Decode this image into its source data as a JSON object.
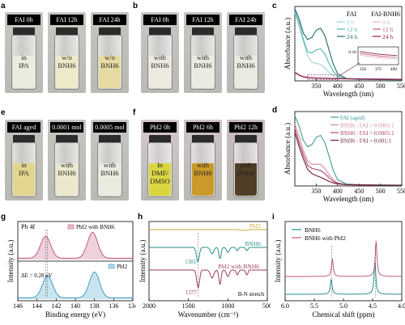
{
  "panels": {
    "a": {
      "label": "a",
      "vials": [
        {
          "tag": "FAI 0h",
          "text": "in\nIPA",
          "liquid": "#ecebdf"
        },
        {
          "tag": "FAI 12h",
          "text": "w/o\nBNH6",
          "liquid": "#eee9c9"
        },
        {
          "tag": "FAI 24h",
          "text": "w/o\nBNH6",
          "liquid": "#e6dba2"
        }
      ]
    },
    "b": {
      "label": "b",
      "vials": [
        {
          "tag": "FAI 0h",
          "text": "with\nBNH6",
          "liquid": "#eceae1"
        },
        {
          "tag": "FAI 12h",
          "text": "with\nBNH6",
          "liquid": "#ecebe2"
        },
        {
          "tag": "FAI 24h",
          "text": "with\nBNH6",
          "liquid": "#ebeae0"
        }
      ]
    },
    "e": {
      "label": "e",
      "vials": [
        {
          "tag": "FAI aged",
          "text": "in\nIPA",
          "liquid": "#e2d68f"
        },
        {
          "tag": "0.0001 mol",
          "text": "with\nBNH6",
          "liquid": "#ece8cd"
        },
        {
          "tag": "0.0005 mol",
          "text": "with\nBNH6",
          "liquid": "#ecebe0"
        }
      ]
    },
    "f": {
      "label": "f",
      "vials": [
        {
          "tag": "PbI2 0h",
          "text": "In DMF/\nDMSO",
          "liquid": "#d9d640"
        },
        {
          "tag": "PbI2 6h",
          "text": "with\nBNH6",
          "liquid": "#c99a2a"
        },
        {
          "tag": "PbI2 12h",
          "text": "with\nBNH6",
          "liquid": "#4f3f27"
        }
      ]
    },
    "c": {
      "label": "c"
    },
    "d": {
      "label": "d"
    },
    "g": {
      "label": "g"
    },
    "h": {
      "label": "h"
    },
    "i": {
      "label": "i"
    }
  },
  "chart_data": [
    {
      "id": "c",
      "type": "line",
      "xlabel": "Wavelength (nm)",
      "ylabel": "Absorbance (a.u.)",
      "xlim": [
        300,
        550
      ],
      "xticks": [
        350,
        400,
        450,
        500,
        550
      ],
      "legend_headers": [
        "FAI",
        "FAI-BNH6"
      ],
      "legend_rows": [
        "0 h",
        "12 h",
        "24 h"
      ],
      "series": [
        {
          "name": "FAI 0 h",
          "color": "#9fd8d6",
          "x": [
            300,
            310,
            320,
            330,
            340,
            350,
            360,
            370,
            380,
            390,
            400,
            420,
            450,
            500,
            550
          ],
          "y": [
            3.3,
            2.6,
            1.9,
            1.2,
            0.9,
            0.85,
            0.8,
            0.62,
            0.42,
            0.25,
            0.15,
            0.09,
            0.07,
            0.06,
            0.05
          ]
        },
        {
          "name": "FAI 12 h",
          "color": "#4fb3ad",
          "x": [
            300,
            310,
            320,
            330,
            340,
            350,
            360,
            370,
            380,
            390,
            400,
            420,
            450,
            500,
            550
          ],
          "y": [
            3.4,
            2.8,
            2.0,
            1.4,
            1.35,
            1.5,
            1.55,
            1.3,
            0.85,
            0.45,
            0.22,
            0.1,
            0.07,
            0.06,
            0.05
          ]
        },
        {
          "name": "FAI 24 h",
          "color": "#1d6e68",
          "x": [
            300,
            310,
            320,
            330,
            340,
            350,
            360,
            370,
            380,
            390,
            400,
            420,
            450,
            500,
            550
          ],
          "y": [
            3.5,
            3.0,
            2.3,
            2.0,
            2.1,
            2.45,
            2.55,
            2.2,
            1.5,
            0.8,
            0.35,
            0.12,
            0.08,
            0.06,
            0.05
          ]
        },
        {
          "name": "FAI-BNH6 0 h",
          "color": "#e8b4c6",
          "x": [
            300,
            310,
            320,
            330,
            350,
            400,
            450,
            500,
            550
          ],
          "y": [
            0.45,
            0.3,
            0.22,
            0.18,
            0.15,
            0.12,
            0.1,
            0.09,
            0.08
          ]
        },
        {
          "name": "FAI-BNH6 12 h",
          "color": "#c25a82",
          "x": [
            300,
            310,
            320,
            330,
            350,
            400,
            450,
            500,
            550
          ],
          "y": [
            0.42,
            0.28,
            0.2,
            0.16,
            0.14,
            0.11,
            0.1,
            0.09,
            0.08
          ]
        },
        {
          "name": "FAI-BNH6 24 h",
          "color": "#8e1f4e",
          "x": [
            300,
            310,
            320,
            330,
            350,
            400,
            450,
            500,
            550
          ],
          "y": [
            0.4,
            0.27,
            0.19,
            0.15,
            0.13,
            0.1,
            0.09,
            0.08,
            0.07
          ]
        }
      ],
      "inset": {
        "xticks": [
          "350",
          "375",
          "400"
        ],
        "ytick": "0.10"
      }
    },
    {
      "id": "d",
      "type": "line",
      "xlabel": "Wavelength (nm)",
      "ylabel": "Absorbance (a.u.)",
      "xlim": [
        300,
        550
      ],
      "xticks": [
        350,
        400,
        450,
        500,
        550
      ],
      "legend": [
        "FAI (aged)",
        "BNH6 : FAI = 0.0001:1",
        "BNH6 : FAI = 0.0005:1",
        "BNH6 : FAI = 0.001:1"
      ],
      "series": [
        {
          "name": "FAI (aged)",
          "color": "#3d9c95",
          "x": [
            300,
            310,
            320,
            330,
            340,
            350,
            360,
            370,
            380,
            390,
            400,
            420,
            450,
            500,
            550
          ],
          "y": [
            3.4,
            2.9,
            2.2,
            1.9,
            2.0,
            2.35,
            2.45,
            2.1,
            1.45,
            0.75,
            0.3,
            0.1,
            0.06,
            0.05,
            0.04
          ]
        },
        {
          "name": "BNH6 : FAI = 0.0001:1",
          "color": "#d28aa9",
          "x": [
            300,
            310,
            320,
            330,
            340,
            350,
            360,
            370,
            380,
            390,
            400,
            420,
            450,
            500,
            550
          ],
          "y": [
            3.0,
            2.4,
            1.7,
            1.2,
            1.05,
            1.05,
            1.05,
            0.85,
            0.55,
            0.3,
            0.15,
            0.07,
            0.05,
            0.04,
            0.04
          ]
        },
        {
          "name": "BNH6 : FAI = 0.0005:1",
          "color": "#b2426f",
          "x": [
            300,
            310,
            320,
            330,
            340,
            350,
            360,
            370,
            380,
            390,
            400,
            420,
            450,
            500,
            550
          ],
          "y": [
            2.8,
            2.1,
            1.5,
            1.0,
            0.85,
            0.8,
            0.75,
            0.6,
            0.4,
            0.22,
            0.12,
            0.06,
            0.05,
            0.04,
            0.04
          ]
        },
        {
          "name": "BNH6 : FAI = 0.001:1",
          "color": "#6d1f3c",
          "x": [
            300,
            310,
            320,
            330,
            340,
            350,
            360,
            370,
            380,
            390,
            400,
            420,
            450,
            500,
            550
          ],
          "y": [
            2.6,
            1.9,
            1.3,
            0.8,
            0.6,
            0.5,
            0.42,
            0.32,
            0.22,
            0.14,
            0.1,
            0.06,
            0.05,
            0.04,
            0.04
          ]
        }
      ]
    },
    {
      "id": "g",
      "type": "line",
      "xlabel": "Binding energy (eV)",
      "ylabel": "Intensity (a.u.)",
      "xlim": [
        146,
        134
      ],
      "xticks": [
        146,
        144,
        142,
        140,
        138,
        136,
        134
      ],
      "title": "Pb 4f",
      "annotation": "ΔE = 0.28 eV",
      "top": {
        "name": "PbI2 with BNH6",
        "color": "#c25a82",
        "peaks": [
          {
            "x": 143.1,
            "h": 0.85
          },
          {
            "x": 138.2,
            "h": 1.0
          }
        ]
      },
      "bottom": {
        "name": "PbI2",
        "color": "#3f9fc7",
        "peaks": [
          {
            "x": 142.9,
            "h": 0.85
          },
          {
            "x": 138.0,
            "h": 1.0
          }
        ]
      }
    },
    {
      "id": "h",
      "type": "line",
      "xlabel": "Wavenumber (cm⁻¹)",
      "ylabel": "Intensity (a.u.)",
      "xlim": [
        2000,
        500
      ],
      "xticks": [
        2000,
        1500,
        1000,
        500
      ],
      "series": [
        {
          "name": "PbI2",
          "color": "#c9a93e"
        },
        {
          "name": "BNH6",
          "color": "#2a8f8a"
        },
        {
          "name": "PbI2 with BNH6",
          "color": "#9b3a5e"
        }
      ],
      "annotations": [
        "1381",
        "1377",
        "B-N stretch"
      ]
    },
    {
      "id": "i",
      "type": "line",
      "xlabel": "Chemical shift (ppm)",
      "ylabel": "Intensity (a.u.)",
      "xlim": [
        6.0,
        4.0
      ],
      "xticks": [
        "6.0",
        "5.5",
        "5.0",
        "4.5",
        "4.0"
      ],
      "legend": [
        "BNH6",
        "BNH6 with PbI2"
      ],
      "series": [
        {
          "name": "BNH6",
          "color": "#2a8f8a",
          "peaks": [
            {
              "x": 5.21,
              "h": 0.45
            },
            {
              "x": 4.46,
              "h": 1.0
            }
          ]
        },
        {
          "name": "BNH6 with PbI2",
          "color": "#c25a82",
          "peaks": [
            {
              "x": 5.19,
              "h": 0.55
            },
            {
              "x": 4.44,
              "h": 1.1
            }
          ]
        }
      ]
    }
  ]
}
